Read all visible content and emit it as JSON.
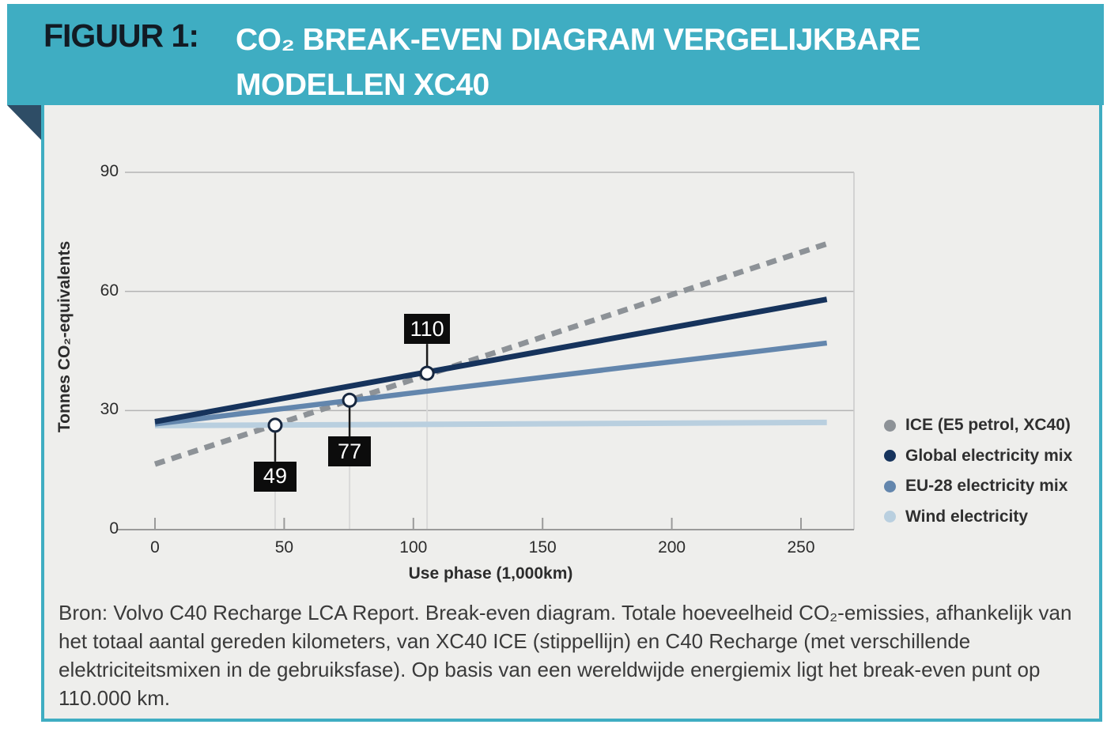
{
  "figure": {
    "label": "FIGUUR 1:",
    "title_line1": "CO₂ BREAK-EVEN DIAGRAM VERGELIJKBARE",
    "title_line2": "MODELLEN XC40"
  },
  "caption": {
    "text": "Bron: Volvo C40 Recharge LCA Report. Break-even diagram. Totale hoeveelheid CO₂-emissies, afhankelijk van het totaal aantal gereden kilometers, van XC40 ICE (stippellijn) en C40 Recharge (met verschillende elektriciteitsmixen in de gebruiksfase). Op basis van een wereldwijde energiemix ligt het break-even punt op 110.000 km."
  },
  "colors": {
    "header_teal": "#3fadc2",
    "fold_navy": "#2e4d66",
    "panel_bg": "#eeeeec",
    "grid": "#b4b4b4",
    "axis": "#9a9a9a",
    "plot_border": "#c9c9c9",
    "guide": "#d9d9d9",
    "connector": "#1b1b1b",
    "marker_ring": "#17273f",
    "marker_fill": "#fdfdfd",
    "box_bg": "#0c0c0c",
    "box_text": "#ffffff"
  },
  "chart_data": {
    "type": "line",
    "xlabel": "Use phase (1,000km)",
    "ylabel": "Tonnes CO₂-equivalents",
    "xlim": [
      0,
      270
    ],
    "ylim": [
      0,
      90
    ],
    "x_ticks": [
      0,
      50,
      100,
      150,
      200,
      250
    ],
    "y_ticks": [
      0,
      30,
      60,
      90
    ],
    "grid": "horizontal",
    "legend_position": "right",
    "series": [
      {
        "name": "ICE (E5 petrol, XC40)",
        "style": "dashed",
        "color": "#8d9297",
        "x": [
          0,
          260
        ],
        "y": [
          16.5,
          72
        ]
      },
      {
        "name": "Global electricity mix",
        "style": "solid",
        "color": "#16335c",
        "x": [
          0,
          260
        ],
        "y": [
          27.2,
          58
        ]
      },
      {
        "name": "EU-28 electricity mix",
        "style": "solid",
        "color": "#6386ad",
        "x": [
          0,
          260
        ],
        "y": [
          26.6,
          47
        ]
      },
      {
        "name": "Wind electricity",
        "style": "solid",
        "color": "#b9cfdf",
        "x": [
          0,
          260
        ],
        "y": [
          26.2,
          27
        ]
      }
    ],
    "break_even_points": [
      {
        "label": "49",
        "x": 46.5,
        "y": 26.3,
        "label_position": "below"
      },
      {
        "label": "77",
        "x": 75.3,
        "y": 32.6,
        "label_position": "below"
      },
      {
        "label": "110",
        "x": 105.3,
        "y": 39.4,
        "label_position": "above"
      }
    ]
  }
}
